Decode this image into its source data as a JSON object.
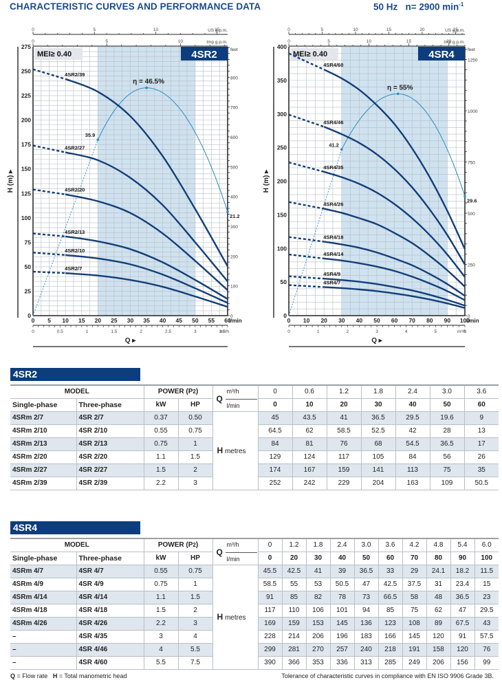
{
  "header": {
    "title": "CHARACTERISTIC CURVES AND PERFORMANCE DATA",
    "frequency": "50 Hz",
    "speed_label": "n= 2900 min",
    "speed_exp": "-1"
  },
  "chart_data": [
    {
      "type": "line",
      "id": "4SR2",
      "badge": "4SR2",
      "mei": "MEI≥ 0.40",
      "xlabel": "Q ▸",
      "ylabel": "H (m) ▸",
      "x_unit": "l/min",
      "xlim": [
        0,
        60
      ],
      "ylim": [
        0,
        275
      ],
      "x_ticks": [
        0,
        5,
        10,
        15,
        20,
        25,
        30,
        35,
        40,
        45,
        50,
        55,
        60
      ],
      "y_ticks": [
        0,
        25,
        50,
        75,
        100,
        125,
        150,
        175,
        200,
        225,
        250,
        275
      ],
      "grid": true,
      "recommended_range": [
        20,
        50
      ],
      "top_axis_us": {
        "label": "US g.p.m.",
        "ticks": [
          0,
          5,
          10,
          15
        ]
      },
      "top_axis_imp": {
        "label": "Imp g.p.m.",
        "ticks": [
          0,
          5,
          10
        ]
      },
      "bottom_axis_m3h": {
        "label": "m³/h",
        "ticks": [
          0,
          0.5,
          1,
          1.5,
          2,
          2.5,
          3,
          3.5
        ]
      },
      "right_axis_feet": {
        "label": "feet",
        "ticks": [
          0,
          100,
          200,
          300,
          400,
          500,
          600,
          700,
          800
        ]
      },
      "x": [
        0,
        10,
        20,
        30,
        40,
        50,
        60
      ],
      "dashed_until": 10,
      "series": [
        {
          "name": "4SR2/7",
          "values": [
            45,
            43.5,
            41,
            36.5,
            29.5,
            19.6,
            9
          ]
        },
        {
          "name": "4SR2/10",
          "values": [
            64.5,
            62,
            58.5,
            52.5,
            42,
            28,
            13
          ]
        },
        {
          "name": "4SR2/13",
          "values": [
            84,
            81,
            76,
            68,
            54.5,
            36.5,
            17
          ]
        },
        {
          "name": "4SR2/20",
          "values": [
            129,
            124,
            117,
            105,
            84,
            56,
            26
          ]
        },
        {
          "name": "4SR2/27",
          "values": [
            174,
            167,
            159,
            141,
            113,
            75,
            35
          ]
        },
        {
          "name": "4SR2/39",
          "values": [
            252,
            242,
            229,
            204,
            163,
            109,
            50.5
          ]
        }
      ],
      "efficiency": {
        "label": "η = 46.5%",
        "peak": 46.5,
        "points": [
          {
            "q": 20,
            "eta": 35.9,
            "label": "35.9"
          },
          {
            "q": 35,
            "eta": 46.5
          },
          {
            "q": 60,
            "eta": 21.2,
            "label": "21.2"
          }
        ]
      }
    },
    {
      "type": "line",
      "id": "4SR4",
      "badge": "4SR4",
      "mei": "MEI≥ 0.40",
      "xlabel": "Q ▸",
      "ylabel": "H (m) ▸",
      "x_unit": "l/min",
      "xlim": [
        0,
        100
      ],
      "ylim": [
        0,
        400
      ],
      "x_ticks": [
        0,
        10,
        20,
        30,
        40,
        50,
        60,
        70,
        80,
        90,
        100
      ],
      "y_ticks": [
        0,
        50,
        100,
        150,
        200,
        250,
        300,
        350,
        400
      ],
      "grid": true,
      "recommended_range": [
        30,
        90
      ],
      "top_axis_us": {
        "label": "US g.p.m.",
        "ticks": [
          0,
          5,
          10,
          15,
          20,
          25
        ]
      },
      "top_axis_imp": {
        "label": "Imp g.p.m.",
        "ticks": [
          0,
          5,
          10,
          15,
          20
        ]
      },
      "bottom_axis_m3h": {
        "label": "m³/h",
        "ticks": [
          0,
          1,
          2,
          3,
          4,
          5,
          6
        ]
      },
      "right_axis_feet": {
        "label": "feet",
        "ticks": [
          0,
          250,
          500,
          750,
          1000,
          1250
        ]
      },
      "x": [
        0,
        20,
        30,
        40,
        50,
        60,
        70,
        80,
        90,
        100
      ],
      "dashed_until": 20,
      "series": [
        {
          "name": "4SR4/7",
          "values": [
            45.5,
            42.5,
            41,
            39,
            36.5,
            33,
            29,
            24.1,
            18.2,
            11.5
          ]
        },
        {
          "name": "4SR4/9",
          "values": [
            58.5,
            55,
            53,
            50.5,
            47,
            42.5,
            37.5,
            31,
            23.4,
            15
          ]
        },
        {
          "name": "4SR4/14",
          "values": [
            91,
            85,
            82,
            78,
            73,
            66.5,
            58,
            48,
            36.5,
            23
          ]
        },
        {
          "name": "4SR4/18",
          "values": [
            117,
            110,
            106,
            101,
            94,
            85,
            75,
            62,
            47,
            29.5
          ]
        },
        {
          "name": "4SR4/26",
          "values": [
            169,
            159,
            153,
            145,
            136,
            123,
            108,
            89,
            67.5,
            43
          ]
        },
        {
          "name": "4SR4/35",
          "values": [
            228,
            214,
            206,
            196,
            183,
            166,
            145,
            120,
            91,
            57.5
          ]
        },
        {
          "name": "4SR4/46",
          "values": [
            299,
            281,
            270,
            257,
            240,
            218,
            191,
            158,
            120,
            76
          ]
        },
        {
          "name": "4SR4/60",
          "values": [
            390,
            366,
            353,
            336,
            313,
            285,
            249,
            206,
            156,
            99
          ]
        }
      ],
      "efficiency": {
        "label": "η = 55%",
        "peak": 55,
        "points": [
          {
            "q": 30,
            "eta": 41.2,
            "label": "41.2"
          },
          {
            "q": 62,
            "eta": 55
          },
          {
            "q": 100,
            "eta": 29.6,
            "label": "29.6"
          }
        ]
      }
    }
  ],
  "tables": [
    {
      "title": "4SR2",
      "hdr_model": "MODEL",
      "hdr_single": "Single-phase",
      "hdr_three": "Three-phase",
      "hdr_power": "POWER (P2)",
      "hdr_kw": "kW",
      "hdr_hp": "HP",
      "hdr_q": "Q",
      "hdr_m3h": "m³/h",
      "hdr_lmin": "l/min",
      "h_label": "H",
      "h_unit": "metres",
      "q_m3h": [
        "0",
        "0.6",
        "1.2",
        "1.8",
        "2.4",
        "3.0",
        "3.6"
      ],
      "q_lmin": [
        "0",
        "10",
        "20",
        "30",
        "40",
        "50",
        "60"
      ],
      "rows": [
        {
          "single": "4SRm 2/7",
          "three": "4SR 2/7",
          "kw": "0.37",
          "hp": "0.50",
          "h": [
            "45",
            "43.5",
            "41",
            "36.5",
            "29.5",
            "19.6",
            "9"
          ]
        },
        {
          "single": "4SRm 2/10",
          "three": "4SR 2/10",
          "kw": "0.55",
          "hp": "0.75",
          "h": [
            "64.5",
            "62",
            "58.5",
            "52.5",
            "42",
            "28",
            "13"
          ]
        },
        {
          "single": "4SRm 2/13",
          "three": "4SR 2/13",
          "kw": "0.75",
          "hp": "1",
          "h": [
            "84",
            "81",
            "76",
            "68",
            "54.5",
            "36.5",
            "17"
          ]
        },
        {
          "single": "4SRm 2/20",
          "three": "4SR 2/20",
          "kw": "1.1",
          "hp": "1.5",
          "h": [
            "129",
            "124",
            "117",
            "105",
            "84",
            "56",
            "26"
          ]
        },
        {
          "single": "4SRm 2/27",
          "three": "4SR 2/27",
          "kw": "1.5",
          "hp": "2",
          "h": [
            "174",
            "167",
            "159",
            "141",
            "113",
            "75",
            "35"
          ]
        },
        {
          "single": "4SRm 2/39",
          "three": "4SR 2/39",
          "kw": "2.2",
          "hp": "3",
          "h": [
            "252",
            "242",
            "229",
            "204",
            "163",
            "109",
            "50.5"
          ]
        }
      ]
    },
    {
      "title": "4SR4",
      "hdr_model": "MODEL",
      "hdr_single": "Single-phase",
      "hdr_three": "Three-phase",
      "hdr_power": "POWER (P2)",
      "hdr_kw": "kW",
      "hdr_hp": "HP",
      "hdr_q": "Q",
      "hdr_m3h": "m³/h",
      "hdr_lmin": "l/min",
      "h_label": "H",
      "h_unit": "metres",
      "q_m3h": [
        "0",
        "1.2",
        "1.8",
        "2.4",
        "3.0",
        "3.6",
        "4.2",
        "4.8",
        "5.4",
        "6.0"
      ],
      "q_lmin": [
        "0",
        "20",
        "30",
        "40",
        "50",
        "60",
        "70",
        "80",
        "90",
        "100"
      ],
      "rows": [
        {
          "single": "4SRm 4/7",
          "three": "4SR 4/7",
          "kw": "0.55",
          "hp": "0.75",
          "h": [
            "45.5",
            "42.5",
            "41",
            "39",
            "36.5",
            "33",
            "29",
            "24.1",
            "18.2",
            "11.5"
          ]
        },
        {
          "single": "4SRm 4/9",
          "three": "4SR 4/9",
          "kw": "0.75",
          "hp": "1",
          "h": [
            "58.5",
            "55",
            "53",
            "50.5",
            "47",
            "42.5",
            "37.5",
            "31",
            "23.4",
            "15"
          ]
        },
        {
          "single": "4SRm 4/14",
          "three": "4SR 4/14",
          "kw": "1.1",
          "hp": "1.5",
          "h": [
            "91",
            "85",
            "82",
            "78",
            "73",
            "66.5",
            "58",
            "48",
            "36.5",
            "23"
          ]
        },
        {
          "single": "4SRm 4/18",
          "three": "4SR 4/18",
          "kw": "1.5",
          "hp": "2",
          "h": [
            "117",
            "110",
            "106",
            "101",
            "94",
            "85",
            "75",
            "62",
            "47",
            "29.5"
          ]
        },
        {
          "single": "4SRm 4/26",
          "three": "4SR 4/26",
          "kw": "2.2",
          "hp": "3",
          "h": [
            "169",
            "159",
            "153",
            "145",
            "136",
            "123",
            "108",
            "89",
            "67.5",
            "43"
          ]
        },
        {
          "single": "–",
          "three": "4SR 4/35",
          "kw": "3",
          "hp": "4",
          "h": [
            "228",
            "214",
            "206",
            "196",
            "183",
            "166",
            "145",
            "120",
            "91",
            "57.5"
          ]
        },
        {
          "single": "–",
          "three": "4SR 4/46",
          "kw": "4",
          "hp": "5.5",
          "h": [
            "299",
            "281",
            "270",
            "257",
            "240",
            "218",
            "191",
            "158",
            "120",
            "76"
          ]
        },
        {
          "single": "–",
          "three": "4SR 4/60",
          "kw": "5.5",
          "hp": "7.5",
          "h": [
            "390",
            "366",
            "353",
            "336",
            "313",
            "285",
            "249",
            "206",
            "156",
            "99"
          ]
        }
      ]
    }
  ],
  "footer": {
    "legend_q": "Q",
    "legend_q_text": " = Flow rate",
    "legend_h": "H",
    "legend_h_text": " = Total manometric head",
    "tolerance": "Tolerance of characteristic curves in compliance with EN ISO 9906 Grade 3B."
  },
  "colors": {
    "brand": "#0d3d7c",
    "curve": "#123e78",
    "efficiency": "#2a8bc6",
    "band": "#cfe2f0",
    "grid": "#b8bcc2",
    "mei_bg": "#e3e6ea",
    "row_shade": "#dfe6ee"
  }
}
